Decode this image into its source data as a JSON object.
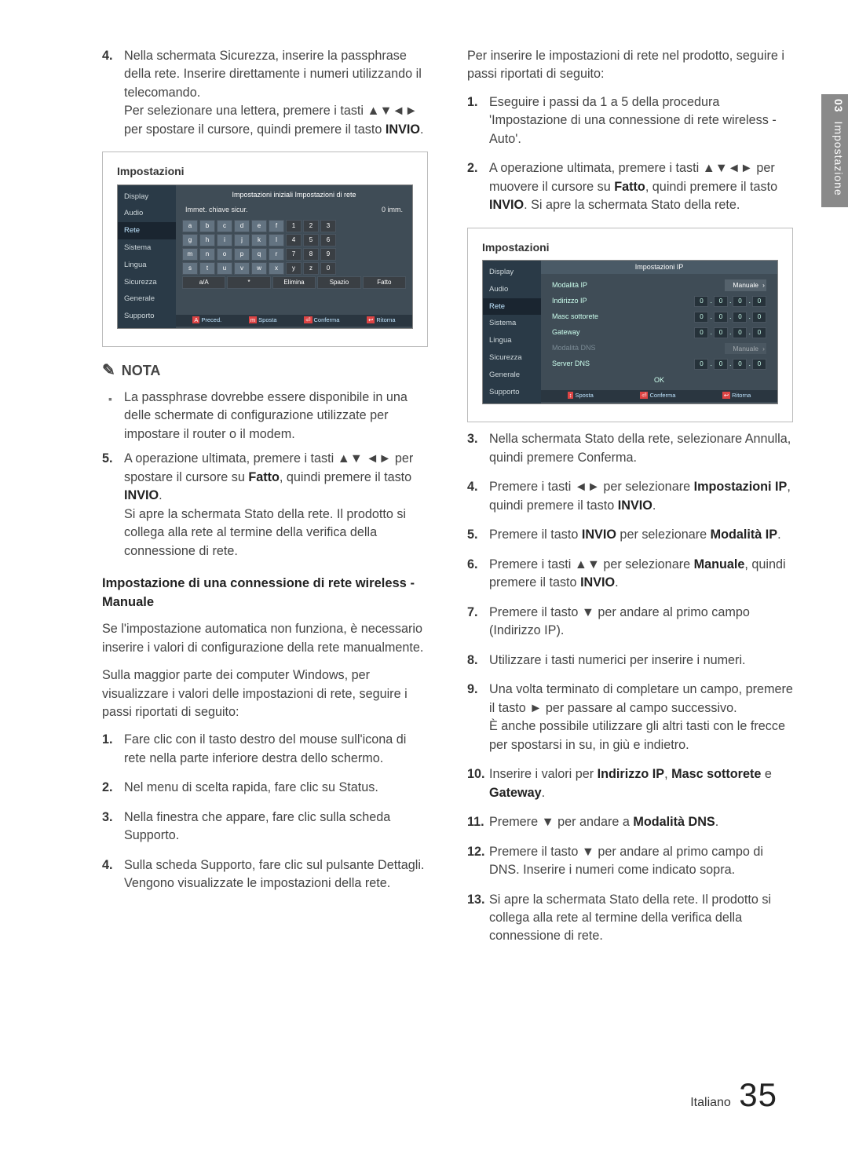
{
  "side_tab": {
    "num": "03",
    "label": "Impostazione"
  },
  "footer": {
    "lang": "Italiano",
    "page": "35"
  },
  "left": {
    "step4": {
      "num": "4.",
      "text_a": "Nella schermata Sicurezza, inserire la passphrase della rete. Inserire direttamente i numeri utilizzando il telecomando.",
      "text_b_pre": "Per selezionare una lettera, premere i tasti ",
      "arrows": "▲▼◄►",
      "text_b_mid": " per spostare il cursore, quindi premere il tasto ",
      "invio": "INVIO",
      "dot": "."
    },
    "shot1": {
      "title": "Impostazioni",
      "header": "Impostazioni iniziali Impostazioni di rete",
      "subhead_left": "Immet. chiave sicur.",
      "subhead_right": "0 imm.",
      "nav": [
        "Display",
        "Audio",
        "Rete",
        "Sistema",
        "Lingua",
        "Sicurezza",
        "Generale",
        "Supporto"
      ],
      "nav_selected": 2,
      "rows": [
        [
          "a",
          "b",
          "c",
          "d",
          "e",
          "f",
          "1",
          "2",
          "3"
        ],
        [
          "g",
          "h",
          "i",
          "j",
          "k",
          "l",
          "4",
          "5",
          "6"
        ],
        [
          "m",
          "n",
          "o",
          "p",
          "q",
          "r",
          "7",
          "8",
          "9"
        ],
        [
          "s",
          "t",
          "u",
          "v",
          "w",
          "x",
          "y",
          "z",
          "0"
        ]
      ],
      "actions": [
        "a/A",
        "*",
        "Elimina",
        "Spazio",
        "Fatto"
      ],
      "foot": [
        "Preced.",
        "Sposta",
        "Conferma",
        "Ritorna"
      ],
      "foot_tags": [
        "A",
        "m",
        "⏎",
        "↩"
      ]
    },
    "note_title": "NOTA",
    "note_bullet": "La passphrase dovrebbe essere disponibile in una delle schermate di configurazione utilizzate per impostare il router o il modem.",
    "step5": {
      "num": "5.",
      "a_pre": "A operazione ultimata, premere i tasti ",
      "arr1": "▲▼",
      "arr2": "◄►",
      "a_mid": " per spostare il cursore su ",
      "fatto": "Fatto",
      "a_post1": ", quindi premere il tasto ",
      "invio": "INVIO",
      "dot": ".",
      "b": "Si apre la schermata Stato della rete. Il prodotto si collega alla rete al termine della verifica della connessione di rete."
    },
    "subheading": "Impostazione di una connessione di rete wireless - Manuale",
    "para1": "Se l'impostazione automatica non funziona, è necessario inserire i valori di configurazione della rete manualmente.",
    "para2": "Sulla maggior parte dei computer Windows, per visualizzare i valori delle impostazioni di rete, seguire i passi riportati di seguito:",
    "winsteps": [
      {
        "n": "1.",
        "t": "Fare clic con il tasto destro del mouse sull'icona di rete nella parte inferiore destra dello schermo."
      },
      {
        "n": "2.",
        "t": "Nel menu di scelta rapida, fare clic su Status."
      },
      {
        "n": "3.",
        "t": "Nella finestra che appare, fare clic sulla scheda Supporto."
      },
      {
        "n": "4.",
        "t": "Sulla scheda Supporto, fare clic sul pulsante Dettagli. Vengono visualizzate le impostazioni della rete."
      }
    ]
  },
  "right": {
    "intro": "Per inserire le impostazioni di rete nel prodotto, seguire i passi riportati di seguito:",
    "s1": {
      "n": "1.",
      "t": "Eseguire i passi da 1 a 5 della procedura 'Impostazione di una connessione di rete wireless - Auto'."
    },
    "s2": {
      "n": "2.",
      "pre": "A operazione ultimata, premere i tasti ",
      "arr": "▲▼◄►",
      "mid": " per muovere il cursore su ",
      "fatto": "Fatto",
      "post1": ", quindi premere il tasto ",
      "invio": "INVIO",
      "post2": ". Si apre la schermata Stato della rete."
    },
    "shot2": {
      "title": "Impostazioni",
      "header": "Impostazioni IP",
      "nav": [
        "Display",
        "Audio",
        "Rete",
        "Sistema",
        "Lingua",
        "Sicurezza",
        "Generale",
        "Supporto"
      ],
      "nav_selected": 2,
      "rows": [
        {
          "lbl": "Modalità IP",
          "type": "sel",
          "val": "Manuale"
        },
        {
          "lbl": "Indirizzo IP",
          "type": "ip",
          "v": [
            "0",
            "0",
            "0",
            "0"
          ]
        },
        {
          "lbl": "Masc sottorete",
          "type": "ip",
          "v": [
            "0",
            "0",
            "0",
            "0"
          ]
        },
        {
          "lbl": "Gateway",
          "type": "ip",
          "v": [
            "0",
            "0",
            "0",
            "0"
          ]
        },
        {
          "lbl": "Modalità DNS",
          "type": "sel-dim",
          "val": "Manuale"
        },
        {
          "lbl": "Server DNS",
          "type": "ip",
          "v": [
            "0",
            "0",
            "0",
            "0"
          ]
        }
      ],
      "ok": "OK",
      "foot": [
        "Sposta",
        "Conferma",
        "Ritorna"
      ],
      "foot_tags": [
        "↕",
        "⏎",
        "↩"
      ]
    },
    "s3": {
      "n": "3.",
      "t": "Nella schermata Stato della rete, selezionare Annulla, quindi premere Conferma."
    },
    "s4": {
      "n": "4.",
      "pre": "Premere i tasti ",
      "arr": "◄►",
      "mid": " per selezionare ",
      "b": "Impostazioni IP",
      "post": ", quindi premere il tasto ",
      "invio": "INVIO",
      "dot": "."
    },
    "s5": {
      "n": "5.",
      "pre": "Premere il tasto ",
      "invio": "INVIO",
      "mid": " per selezionare ",
      "b": "Modalità IP",
      "dot": "."
    },
    "s6": {
      "n": "6.",
      "pre": "Premere i tasti ",
      "arr": "▲▼",
      "mid": " per selezionare ",
      "b": "Manuale",
      "post": ", quindi premere il tasto ",
      "invio": "INVIO",
      "dot": "."
    },
    "s7": {
      "n": "7.",
      "pre": "Premere il tasto ",
      "arr": "▼",
      "post": " per andare al primo campo (Indirizzo IP)."
    },
    "s8": {
      "n": "8.",
      "t": "Utilizzare i tasti numerici per inserire i numeri."
    },
    "s9": {
      "n": "9.",
      "pre": "Una volta terminato di completare un campo, premere il tasto ",
      "arr": "►",
      "mid": " per passare al campo successivo.",
      "post": "È anche possibile utilizzare gli altri tasti con le frecce per spostarsi in su, in giù e indietro."
    },
    "s10": {
      "n": "10.",
      "pre": "Inserire i valori per ",
      "b1": "Indirizzo IP",
      "c1": ", ",
      "b2": "Masc sottorete",
      "c2": " e ",
      "b3": "Gateway",
      "dot": "."
    },
    "s11": {
      "n": "11.",
      "pre": "Premere ",
      "arr": "▼",
      "mid": " per andare a ",
      "b": "Modalità DNS",
      "dot": "."
    },
    "s12": {
      "n": "12.",
      "pre": "Premere il tasto ",
      "arr": "▼",
      "post": " per andare al primo campo di DNS. Inserire i numeri come indicato sopra."
    },
    "s13": {
      "n": "13.",
      "t": "Si apre la schermata Stato della rete. Il prodotto si collega alla rete al termine della verifica della connessione di rete."
    }
  }
}
